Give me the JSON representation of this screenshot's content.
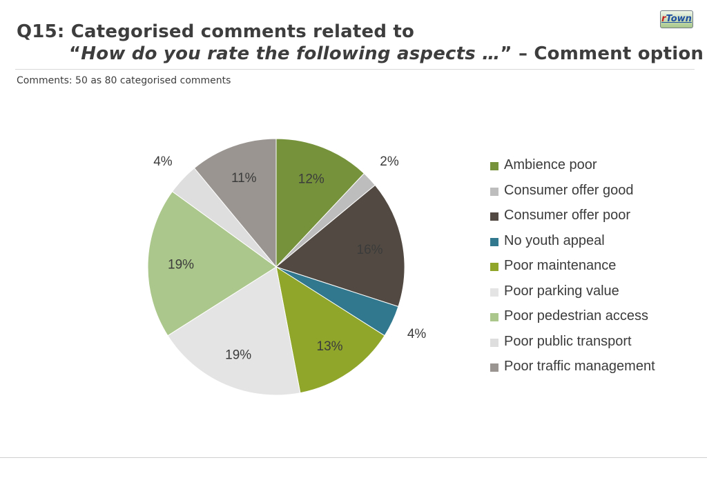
{
  "header": {
    "title_line1": "Q15: Categorised comments related to",
    "title_open_quote": "“",
    "title_quote": "How do you rate the following aspects …",
    "title_close": "” – Comment option",
    "subtitle": "Comments: 50 as 80 categorised comments",
    "logo_r": "r",
    "logo_town": "Town"
  },
  "chart_data": {
    "type": "pie",
    "title": "",
    "start_angle_deg": 0,
    "direction": "clockwise",
    "legend_position": "right",
    "slices": [
      {
        "label": "Ambience poor",
        "value": 12,
        "value_label": "12%",
        "color": "#76933c"
      },
      {
        "label": "Consumer offer good",
        "value": 2,
        "value_label": "2%",
        "color": "#bdbdbd"
      },
      {
        "label": "Consumer offer poor",
        "value": 16,
        "value_label": "16%",
        "color": "#524a42"
      },
      {
        "label": "No youth appeal",
        "value": 4,
        "value_label": "4%",
        "color": "#31788e"
      },
      {
        "label": "Poor maintenance",
        "value": 13,
        "value_label": "13%",
        "color": "#8fa62b"
      },
      {
        "label": "Poor parking value",
        "value": 19,
        "value_label": "19%",
        "color": "#e4e4e4"
      },
      {
        "label": "Poor pedestrian access",
        "value": 19,
        "value_label": "19%",
        "color": "#acc78b"
      },
      {
        "label": "Poor public transport",
        "value": 4,
        "value_label": "4%",
        "color": "#dedede"
      },
      {
        "label": "Poor traffic management",
        "value": 11,
        "value_label": "11%",
        "color": "#9a9590"
      }
    ]
  }
}
